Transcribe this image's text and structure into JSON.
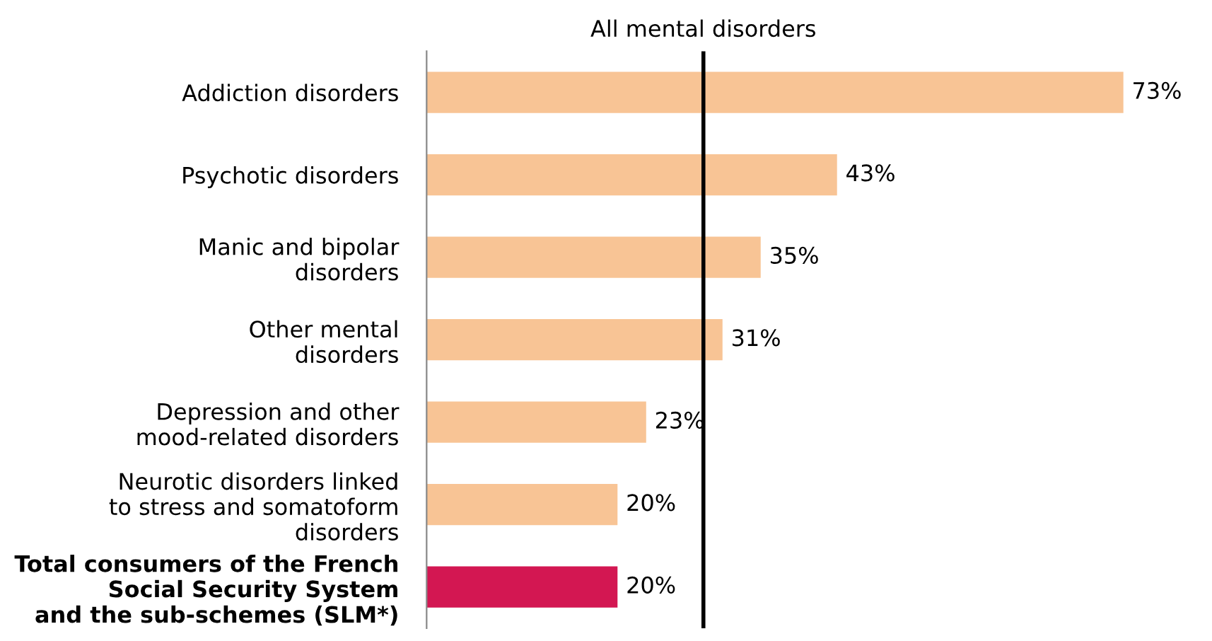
{
  "chart_data": {
    "type": "bar",
    "orientation": "horizontal",
    "categories": [
      "Addiction disorders",
      "Psychotic disorders",
      "Manic and bipolar\ndisorders",
      "Other mental\ndisorders",
      "Depression and other\nmood-related disorders",
      "Neurotic disorders linked\nto stress and somatoform\ndisorders",
      "Total consumers of the French\nSocial Security System\nand the sub-schemes (SLM*)"
    ],
    "values": [
      73,
      43,
      35,
      31,
      23,
      20,
      20
    ],
    "colors": [
      "#f8c495",
      "#f8c495",
      "#f8c495",
      "#f8c495",
      "#f8c495",
      "#f8c495",
      "#d31752"
    ],
    "value_labels": [
      "73%",
      "43%",
      "35%",
      "31%",
      "23%",
      "20%",
      "20%"
    ],
    "ref_lines": [
      {
        "axis": "x",
        "value": 29,
        "label": "All mental disorders",
        "color": "#000000"
      }
    ],
    "grid": false,
    "legend": false
  }
}
